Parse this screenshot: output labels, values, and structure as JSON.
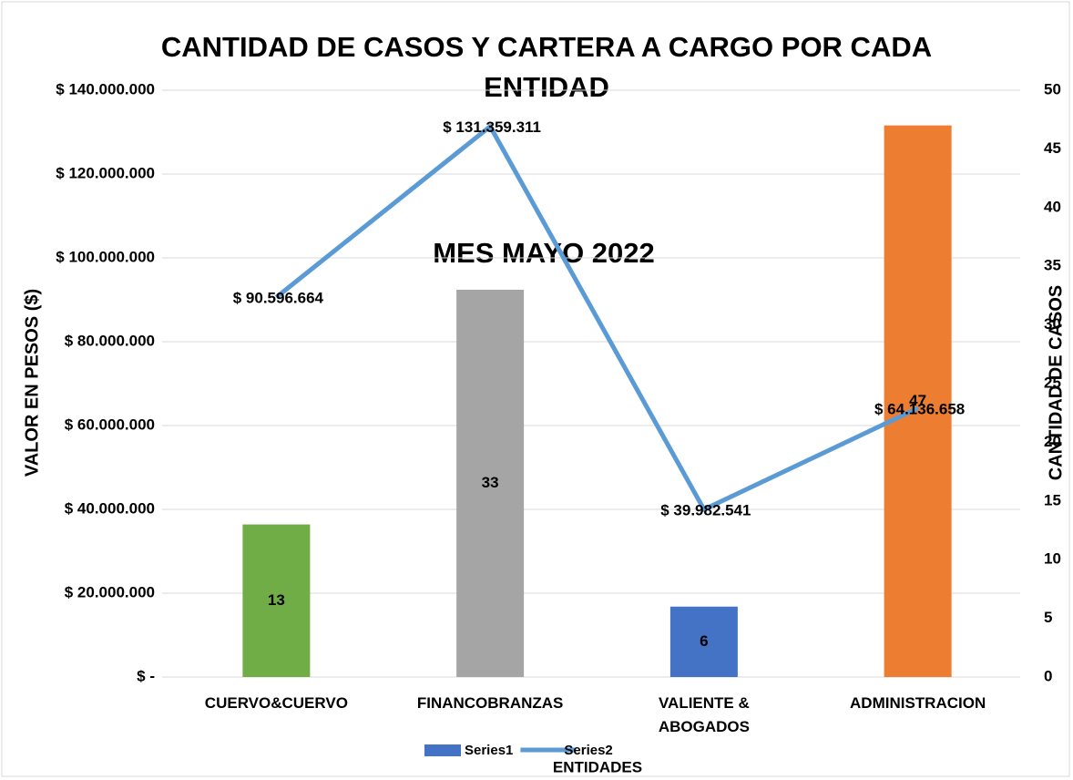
{
  "chart_data": {
    "type": "bar_line",
    "title": "CANTIDAD DE CASOS Y CARTERA A CARGO POR CADA ENTIDAD",
    "annotation": "MES MAYO 2022",
    "x_label": "ENTIDADES",
    "y_label": "VALOR EN PESOS ($)",
    "y2_label": "CANTIDAD DE CASOS",
    "categories": [
      "CUERVO&CUERVO",
      "FINANCOBRANZAS",
      "VALIENTE & ABOGADOS",
      "ADMINISTRACION"
    ],
    "series": [
      {
        "name": "Series1",
        "type": "bar",
        "axis": "y2",
        "color": "#4472c4",
        "point_colors": [
          "#70ad47",
          "#a5a5a5",
          "#4472c4",
          "#ed7d31"
        ],
        "values": [
          13,
          33,
          6,
          47
        ]
      },
      {
        "name": "Series2",
        "type": "line",
        "color": "#5b9bd5",
        "values": [
          90596664,
          131359311,
          39982541,
          64136658
        ],
        "value_labels": [
          "$ 90.596.664",
          "$ 131.359.311",
          "$ 39.982.541",
          "$ 64.136.658"
        ]
      }
    ],
    "ylim": [
      0,
      140000000
    ],
    "yticks": [
      {
        "value": 0,
        "label": "$ -"
      },
      {
        "value": 20000000,
        "label": "$ 20.000.000"
      },
      {
        "value": 40000000,
        "label": "$ 40.000.000"
      },
      {
        "value": 60000000,
        "label": "$ 60.000.000"
      },
      {
        "value": 80000000,
        "label": "$ 80.000.000"
      },
      {
        "value": 100000000,
        "label": "$ 100.000.000"
      },
      {
        "value": 120000000,
        "label": "$ 120.000.000"
      },
      {
        "value": 140000000,
        "label": "$ 140.000.000"
      }
    ],
    "y2lim": [
      0,
      50
    ],
    "y2ticks": [
      0,
      5,
      10,
      15,
      20,
      25,
      30,
      35,
      40,
      45,
      50
    ],
    "grid": true,
    "legend": "bottom"
  }
}
